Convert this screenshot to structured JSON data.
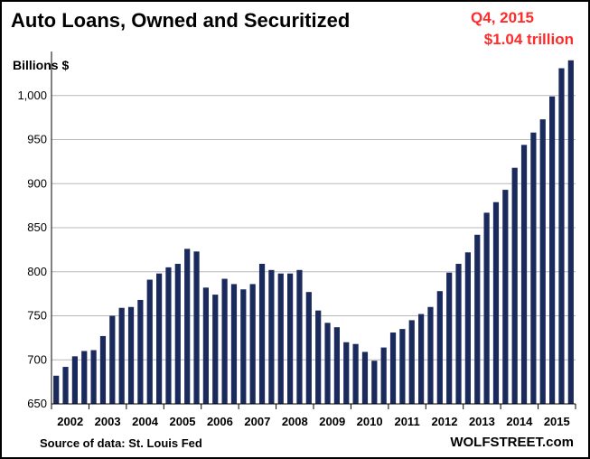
{
  "chart_data": {
    "type": "bar",
    "title": "Auto Loans, Owned and Securitized",
    "ylabel": "Billions $",
    "xlabel": "",
    "ylim": [
      650,
      1050
    ],
    "yticks": [
      650,
      700,
      750,
      800,
      850,
      900,
      950,
      1000
    ],
    "ytick_labels": [
      "650",
      "700",
      "750",
      "800",
      "850",
      "900",
      "950",
      "1,000"
    ],
    "year_labels": [
      "2002",
      "2003",
      "2004",
      "2005",
      "2006",
      "2007",
      "2008",
      "2009",
      "2010",
      "2011",
      "2012",
      "2013",
      "2014",
      "2015"
    ],
    "categories": [
      "2002 Q1",
      "2002 Q2",
      "2002 Q3",
      "2002 Q4",
      "2003 Q1",
      "2003 Q2",
      "2003 Q3",
      "2003 Q4",
      "2004 Q1",
      "2004 Q2",
      "2004 Q3",
      "2004 Q4",
      "2005 Q1",
      "2005 Q2",
      "2005 Q3",
      "2005 Q4",
      "2006 Q1",
      "2006 Q2",
      "2006 Q3",
      "2006 Q4",
      "2007 Q1",
      "2007 Q2",
      "2007 Q3",
      "2007 Q4",
      "2008 Q1",
      "2008 Q2",
      "2008 Q3",
      "2008 Q4",
      "2009 Q1",
      "2009 Q2",
      "2009 Q3",
      "2009 Q4",
      "2010 Q1",
      "2010 Q2",
      "2010 Q3",
      "2010 Q4",
      "2011 Q1",
      "2011 Q2",
      "2011 Q3",
      "2011 Q4",
      "2012 Q1",
      "2012 Q2",
      "2012 Q3",
      "2012 Q4",
      "2013 Q1",
      "2013 Q2",
      "2013 Q3",
      "2013 Q4",
      "2014 Q1",
      "2014 Q2",
      "2014 Q3",
      "2014 Q4",
      "2015 Q1",
      "2015 Q2",
      "2015 Q3",
      "2015 Q4"
    ],
    "values": [
      682,
      692,
      704,
      710,
      711,
      727,
      750,
      759,
      760,
      768,
      791,
      798,
      805,
      809,
      826,
      823,
      782,
      774,
      792,
      786,
      780,
      786,
      809,
      802,
      798,
      798,
      802,
      777,
      756,
      742,
      737,
      720,
      718,
      709,
      699,
      714,
      731,
      735,
      745,
      752,
      760,
      778,
      799,
      809,
      822,
      842,
      867,
      879,
      893,
      918,
      944,
      958,
      973,
      999,
      1031,
      1040
    ],
    "bar_color": "#1a2a5c",
    "annotation": {
      "line1": "Q4, 2015",
      "line2": "$1.04 trillion",
      "color": "#ff2a2a"
    },
    "source": "Source of data: St. Louis Fed",
    "brand": "WOLFSTREET.com"
  }
}
